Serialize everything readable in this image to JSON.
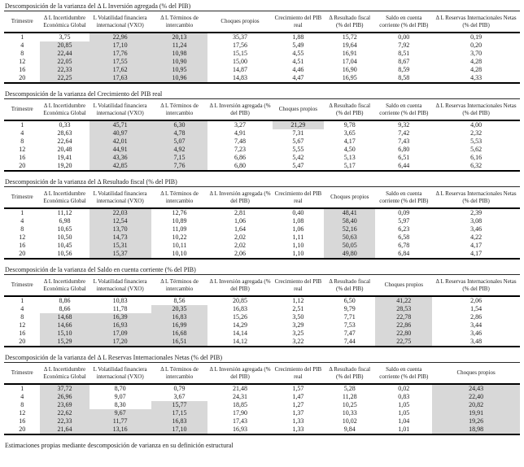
{
  "footnote": "Estimaciones propias mediante descomposición de varianza en su definición estructural",
  "quarter_column": "Trimestre",
  "tables": [
    {
      "title": "Descomposición de la varianza del Δ L Inversión agregada (% del PIB)",
      "headers": [
        "Trimestre",
        "Δ L Incertidumbre Económica Global",
        "L Volatilidad financiera internacional (VXO)",
        "Δ L Términos de intercambio",
        "Choques propios",
        "Crecimiento del PIB real",
        "Δ Resultado fiscal (% del PIB)",
        "Saldo en cuenta corriente (% del PIB)",
        "Δ L Reservas Internacionales Netas (% del PIB)"
      ],
      "rows": [
        [
          "1",
          "3,75",
          "22,96",
          "20,13",
          "35,37",
          "1,88",
          "15,72",
          "0,00",
          "0,19"
        ],
        [
          "4",
          "20,85",
          "17,10",
          "11,24",
          "17,56",
          "5,49",
          "19,64",
          "7,92",
          "0,20"
        ],
        [
          "8",
          "22,44",
          "17,76",
          "10,98",
          "15,15",
          "4,55",
          "16,91",
          "8,51",
          "3,70"
        ],
        [
          "12",
          "22,05",
          "17,55",
          "10,90",
          "15,00",
          "4,51",
          "17,04",
          "8,67",
          "4,28"
        ],
        [
          "16",
          "22,33",
          "17,62",
          "10,95",
          "14,87",
          "4,46",
          "16,90",
          "8,59",
          "4,28"
        ],
        [
          "20",
          "22,25",
          "17,63",
          "10,96",
          "14,83",
          "4,47",
          "16,95",
          "8,58",
          "4,33"
        ]
      ],
      "shaded": {
        "1": [
          1,
          2,
          3,
          4,
          5
        ],
        "2": [
          0,
          1,
          2,
          3,
          4,
          5
        ],
        "3": [
          0,
          1,
          2,
          3,
          4,
          5
        ]
      }
    },
    {
      "title": "Descomposición de la varianza del Crecimiento del PIB real",
      "headers": [
        "Trimestre",
        "Δ L Incertidumbre Económica Global",
        "L Volatilidad financiera internacional (VXO)",
        "Δ L Términos de intercambio",
        "Δ L Inversión agregada (% del PIB)",
        "Choques propios",
        "Δ Resultado fiscal (% del PIB)",
        "Saldo en cuenta corriente (% del PIB)",
        "Δ L Reservas Internacionales Netas (% del PIB)"
      ],
      "rows": [
        [
          "1",
          "0,33",
          "45,71",
          "6,30",
          "3,27",
          "21,29",
          "9,78",
          "9,32",
          "4,00"
        ],
        [
          "4",
          "28,63",
          "40,97",
          "4,78",
          "4,91",
          "7,31",
          "3,65",
          "7,42",
          "2,32"
        ],
        [
          "8",
          "22,64",
          "42,01",
          "5,07",
          "7,48",
          "5,67",
          "4,17",
          "7,43",
          "5,53"
        ],
        [
          "12",
          "20,48",
          "44,91",
          "4,92",
          "7,23",
          "5,55",
          "4,50",
          "6,80",
          "5,62"
        ],
        [
          "16",
          "19,41",
          "43,36",
          "7,15",
          "6,86",
          "5,42",
          "5,13",
          "6,51",
          "6,16"
        ],
        [
          "20",
          "19,20",
          "42,85",
          "7,76",
          "6,80",
          "5,47",
          "5,17",
          "6,44",
          "6,32"
        ]
      ],
      "shaded": {
        "2": [
          0,
          1,
          2,
          3,
          4,
          5
        ],
        "3": [
          0,
          1,
          2,
          3,
          4,
          5
        ],
        "5": [
          0
        ]
      }
    },
    {
      "title": "Descomposición de la varianza del Δ Resultado fiscal (% del PIB)",
      "headers": [
        "Trimestre",
        "Δ L Incertidumbre Económica Global",
        "L Volatilidad financiera internacional (VXO)",
        "Δ L Términos de intercambio",
        "Δ L Inversión agregada (% del PIB)",
        "Crecimiento del PIB real",
        "Choques propios",
        "Saldo en cuenta corriente (% del PIB)",
        "Δ L Reservas Internacionales Netas (% del PIB)"
      ],
      "rows": [
        [
          "1",
          "11,12",
          "22,03",
          "12,76",
          "2,81",
          "0,40",
          "48,41",
          "0,09",
          "2,39"
        ],
        [
          "4",
          "6,98",
          "12,54",
          "10,89",
          "1,06",
          "1,08",
          "58,40",
          "5,97",
          "3,08"
        ],
        [
          "8",
          "10,65",
          "13,70",
          "11,09",
          "1,64",
          "1,06",
          "52,16",
          "6,23",
          "3,46"
        ],
        [
          "12",
          "10,50",
          "14,73",
          "10,22",
          "2,02",
          "1,11",
          "50,63",
          "6,58",
          "4,22"
        ],
        [
          "16",
          "10,45",
          "15,31",
          "10,11",
          "2,02",
          "1,10",
          "50,05",
          "6,78",
          "4,17"
        ],
        [
          "20",
          "10,56",
          "15,37",
          "10,10",
          "2,06",
          "1,10",
          "49,80",
          "6,84",
          "4,17"
        ]
      ],
      "shaded": {
        "2": [
          0,
          1,
          2,
          3,
          4,
          5
        ],
        "6": [
          0,
          1,
          2,
          3,
          4,
          5
        ]
      }
    },
    {
      "title": "Descomposición de la varianza del Saldo en cuenta corriente (% del PIB)",
      "headers": [
        "Trimestre",
        "Δ L Incertidumbre Económica Global",
        "L Volatilidad financiera internacional (VXO)",
        "Δ L Términos de intercambio",
        "Δ L Inversión agregada (% del PIB)",
        "Crecimiento del PIB real",
        "Δ Resultado fiscal (% del PIB)",
        "Choques propios",
        "Δ L Reservas Internacionales Netas (% del PIB)"
      ],
      "rows": [
        [
          "1",
          "8,86",
          "10,83",
          "8,56",
          "20,85",
          "1,12",
          "6,50",
          "41,22",
          "2,06"
        ],
        [
          "4",
          "8,66",
          "11,78",
          "20,35",
          "16,83",
          "2,51",
          "9,79",
          "28,53",
          "1,54"
        ],
        [
          "8",
          "14,68",
          "16,39",
          "16,83",
          "15,26",
          "3,50",
          "7,71",
          "22,78",
          "2,86"
        ],
        [
          "12",
          "14,66",
          "16,93",
          "16,99",
          "14,29",
          "3,29",
          "7,53",
          "22,86",
          "3,44"
        ],
        [
          "16",
          "15,10",
          "17,09",
          "16,68",
          "14,14",
          "3,25",
          "7,47",
          "22,80",
          "3,46"
        ],
        [
          "20",
          "15,29",
          "17,20",
          "16,51",
          "14,12",
          "3,22",
          "7,44",
          "22,75",
          "3,48"
        ]
      ],
      "shaded": {
        "1": [
          2,
          3,
          4,
          5
        ],
        "2": [
          2,
          3,
          4,
          5
        ],
        "3": [
          1,
          2,
          3,
          4,
          5
        ],
        "7": [
          0,
          1,
          2,
          3,
          4,
          5
        ]
      }
    },
    {
      "title": "Descomposición de la varianza del Δ L Reservas Internacionales Netas (% del PIB)",
      "headers": [
        "Trimestre",
        "Δ L Incertidumbre Económica Global",
        "L Volatilidad financiera internacional (VXO)",
        "Δ L Términos de intercambio",
        "Δ L Inversión agregada (% del PIB)",
        "Crecimiento del PIB real",
        "Δ Resultado fiscal (% del PIB)",
        "Saldo en cuenta corriente (% del PIB)",
        "Choques propios"
      ],
      "rows": [
        [
          "1",
          "37,72",
          "8,70",
          "0,79",
          "21,48",
          "1,57",
          "5,28",
          "0,02",
          "24,43"
        ],
        [
          "4",
          "26,96",
          "9,07",
          "3,67",
          "24,31",
          "1,47",
          "11,28",
          "0,83",
          "22,40"
        ],
        [
          "8",
          "23,69",
          "8,30",
          "15,77",
          "18,85",
          "1,27",
          "10,25",
          "1,05",
          "20,82"
        ],
        [
          "12",
          "22,62",
          "9,67",
          "17,15",
          "17,90",
          "1,37",
          "10,33",
          "1,05",
          "19,91"
        ],
        [
          "16",
          "22,33",
          "11,77",
          "16,83",
          "17,43",
          "1,33",
          "10,02",
          "1,04",
          "19,26"
        ],
        [
          "20",
          "21,64",
          "13,16",
          "17,10",
          "16,93",
          "1,33",
          "9,84",
          "1,01",
          "18,98"
        ]
      ],
      "shaded": {
        "1": [
          0,
          1,
          2,
          3,
          4,
          5
        ],
        "2": [
          3,
          4,
          5
        ],
        "3": [
          2,
          3,
          4,
          5
        ],
        "8": [
          0,
          1,
          2,
          3,
          4,
          5
        ]
      }
    }
  ],
  "colors": {
    "shaded_cell": "#d8d8d8",
    "rule": "#000000",
    "text": "#1b1b1b"
  }
}
